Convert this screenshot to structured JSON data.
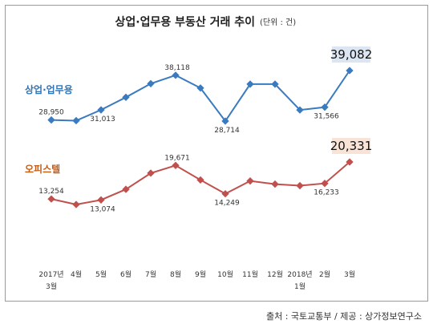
{
  "chart_data": {
    "type": "line",
    "title": "상업·업무용 부동산 거래 추이",
    "unit": "(단위 : 건)",
    "categories": [
      "2017년 3월",
      "4월",
      "5월",
      "6월",
      "7월",
      "8월",
      "9월",
      "10월",
      "11월",
      "12월",
      "2018년 1월",
      "2월",
      "3월"
    ],
    "tick_labels": [
      [
        "2017년",
        "3월"
      ],
      [
        "4월"
      ],
      [
        "5월"
      ],
      [
        "6월"
      ],
      [
        "7월"
      ],
      [
        "8월"
      ],
      [
        "9월"
      ],
      [
        "10월"
      ],
      [
        "11월"
      ],
      [
        "12월"
      ],
      [
        "2018년",
        "1월"
      ],
      [
        "2월"
      ],
      [
        "3월"
      ]
    ],
    "series": [
      {
        "name": "상업·업무용",
        "color": "#3a7bbf",
        "values": [
          28950,
          28800,
          31013,
          33600,
          36400,
          38118,
          35500,
          28714,
          36300,
          36300,
          31000,
          31566,
          39082
        ],
        "labels": [
          {
            "i": 0,
            "text": "28,950"
          },
          {
            "i": 2,
            "text": "31,013"
          },
          {
            "i": 5,
            "text": "38,118"
          },
          {
            "i": 7,
            "text": "28,714"
          },
          {
            "i": 11,
            "text": "31,566"
          },
          {
            "i": 12,
            "text": "39,082",
            "highlight": true
          }
        ]
      },
      {
        "name": "오피스텔",
        "color": "#c0504d",
        "values": [
          13254,
          12200,
          13074,
          15100,
          18200,
          19671,
          16900,
          14249,
          16700,
          16100,
          15800,
          16233,
          20331
        ],
        "labels": [
          {
            "i": 0,
            "text": "13,254"
          },
          {
            "i": 2,
            "text": "13,074"
          },
          {
            "i": 5,
            "text": "19,671"
          },
          {
            "i": 7,
            "text": "14,249"
          },
          {
            "i": 11,
            "text": "16,233"
          },
          {
            "i": 12,
            "text": "20,331",
            "highlight": true
          }
        ]
      }
    ],
    "label_colors": {
      "series_0": "#2e75b6",
      "series_1": "#c55a11"
    },
    "highlight_fill": {
      "series_0": "#dce6f2",
      "series_1": "#f9e3d6"
    },
    "grid": false,
    "legend": "inline-left"
  },
  "source": "출처 : 국토교통부 / 제공 : 상가정보연구소"
}
